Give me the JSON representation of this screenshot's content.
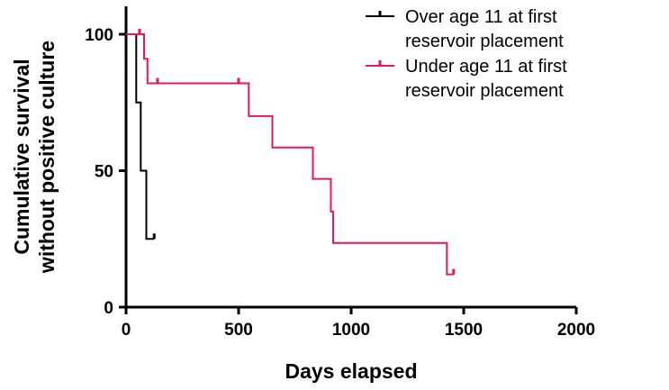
{
  "chart_data": {
    "type": "line",
    "title": "",
    "xlabel": "Days elapsed",
    "ylabel_lines": [
      "Cumulative survival",
      "without positive culture"
    ],
    "xlim": [
      0,
      2000
    ],
    "ylim": [
      0,
      110
    ],
    "x_ticks": [
      0,
      500,
      1000,
      1500,
      2000
    ],
    "y_ticks": [
      0,
      50,
      100
    ],
    "grid": false,
    "legend_position": "top-right",
    "series": [
      {
        "name_lines": [
          "Over age 11 at first",
          "reservoir placement"
        ],
        "color": "#000000",
        "steps": [
          [
            0,
            100
          ],
          [
            45,
            100
          ],
          [
            45,
            75
          ],
          [
            65,
            75
          ],
          [
            65,
            50
          ],
          [
            90,
            50
          ],
          [
            90,
            25
          ],
          [
            125,
            25
          ]
        ],
        "censors": [
          [
            125,
            25
          ]
        ]
      },
      {
        "name_lines": [
          "Under age 11 at first",
          "reservoir placement"
        ],
        "color": "#e8175d",
        "steps": [
          [
            0,
            100
          ],
          [
            80,
            100
          ],
          [
            80,
            91
          ],
          [
            95,
            91
          ],
          [
            95,
            82
          ],
          [
            545,
            82
          ],
          [
            545,
            70
          ],
          [
            650,
            70
          ],
          [
            650,
            58.5
          ],
          [
            830,
            58.5
          ],
          [
            830,
            47
          ],
          [
            910,
            47
          ],
          [
            910,
            35
          ],
          [
            920,
            35
          ],
          [
            920,
            23.5
          ],
          [
            1425,
            23.5
          ],
          [
            1425,
            12
          ],
          [
            1455,
            12
          ]
        ],
        "censors": [
          [
            60,
            100
          ],
          [
            140,
            82
          ],
          [
            500,
            82
          ],
          [
            1455,
            12
          ]
        ]
      }
    ]
  }
}
